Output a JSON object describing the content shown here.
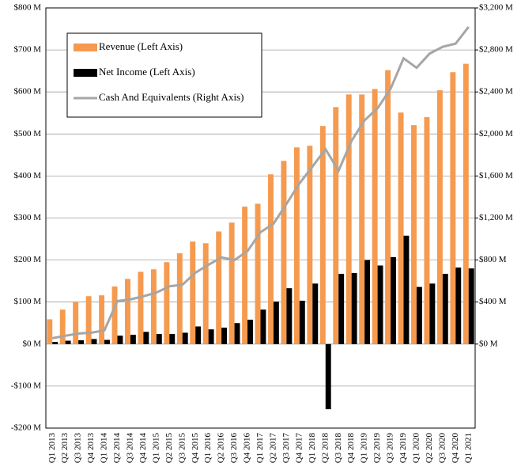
{
  "chart_data": {
    "type": "bar_line_dual",
    "categories": [
      "Q1 2013",
      "Q2 2013",
      "Q3 2013",
      "Q4 2013",
      "Q1 2014",
      "Q2 2014",
      "Q3 2014",
      "Q4 2014",
      "Q1 2015",
      "Q2 2015",
      "Q3 2015",
      "Q4 2015",
      "Q1 2016",
      "Q2 2016",
      "Q3 2016",
      "Q4 2016",
      "Q1 2017",
      "Q2 2017",
      "Q3 2017",
      "Q4 2017",
      "Q1 2018",
      "Q2 2018",
      "Q3 2018",
      "Q4 2018",
      "Q1 2019",
      "Q2 2019",
      "Q3 2019",
      "Q4 2019",
      "Q1 2020",
      "Q2 2020",
      "Q3 2020",
      "Q4 2020",
      "Q1 2021"
    ],
    "series": [
      {
        "name": "Revenue (Left Axis)",
        "color": "#f59a4f",
        "kind": "bar",
        "axis": "y",
        "values": [
          59,
          82,
          101,
          114,
          116,
          137,
          155,
          172,
          178,
          195,
          216,
          244,
          240,
          268,
          289,
          327,
          334,
          404,
          436,
          468,
          472,
          519,
          564,
          594,
          594,
          607,
          652,
          551,
          521,
          540,
          604,
          647,
          667
        ]
      },
      {
        "name": "Net Income (Left Axis)",
        "color": "#000000",
        "kind": "bar",
        "axis": "y",
        "values": [
          5,
          8,
          9,
          12,
          10,
          20,
          22,
          29,
          24,
          24,
          27,
          42,
          35,
          39,
          50,
          58,
          82,
          101,
          133,
          103,
          144,
          -155,
          167,
          169,
          200,
          187,
          207,
          258,
          136,
          144,
          167,
          182,
          180
        ]
      },
      {
        "name": "Cash And Equivalents (Right Axis)",
        "color": "#a6a6a6",
        "kind": "line",
        "axis": "y2",
        "values": [
          56,
          79,
          100,
          109,
          130,
          410,
          425,
          455,
          490,
          550,
          565,
          680,
          755,
          825,
          800,
          885,
          1065,
          1145,
          1335,
          1530,
          1690,
          1855,
          1650,
          1935,
          2130,
          2245,
          2430,
          2720,
          2630,
          2765,
          2830,
          2860,
          3020
        ]
      }
    ],
    "ylim": [
      -200,
      800
    ],
    "yticks": [
      {
        "value": -200,
        "label": "-$200 M"
      },
      {
        "value": -100,
        "label": "-$100 M"
      },
      {
        "value": 0,
        "label": "$0 M"
      },
      {
        "value": 100,
        "label": "$100 M"
      },
      {
        "value": 200,
        "label": "$200 M"
      },
      {
        "value": 300,
        "label": "$300 M"
      },
      {
        "value": 400,
        "label": "$400 M"
      },
      {
        "value": 500,
        "label": "$500 M"
      },
      {
        "value": 600,
        "label": "$600 M"
      },
      {
        "value": 700,
        "label": "$700 M"
      },
      {
        "value": 800,
        "label": "$800 M"
      }
    ],
    "y2lim": [
      -800,
      3200
    ],
    "y2ticks": [
      {
        "value": 0,
        "label": "$0 M"
      },
      {
        "value": 400,
        "label": "$400 M"
      },
      {
        "value": 800,
        "label": "$800 M"
      },
      {
        "value": 1200,
        "label": "$1,200 M"
      },
      {
        "value": 1600,
        "label": "$1,600 M"
      },
      {
        "value": 2000,
        "label": "$2,000 M"
      },
      {
        "value": 2400,
        "label": "$2,400 M"
      },
      {
        "value": 2800,
        "label": "$2,800 M"
      },
      {
        "value": 3200,
        "label": "$3,200 M"
      }
    ],
    "grid": true,
    "legend": "top-left"
  }
}
